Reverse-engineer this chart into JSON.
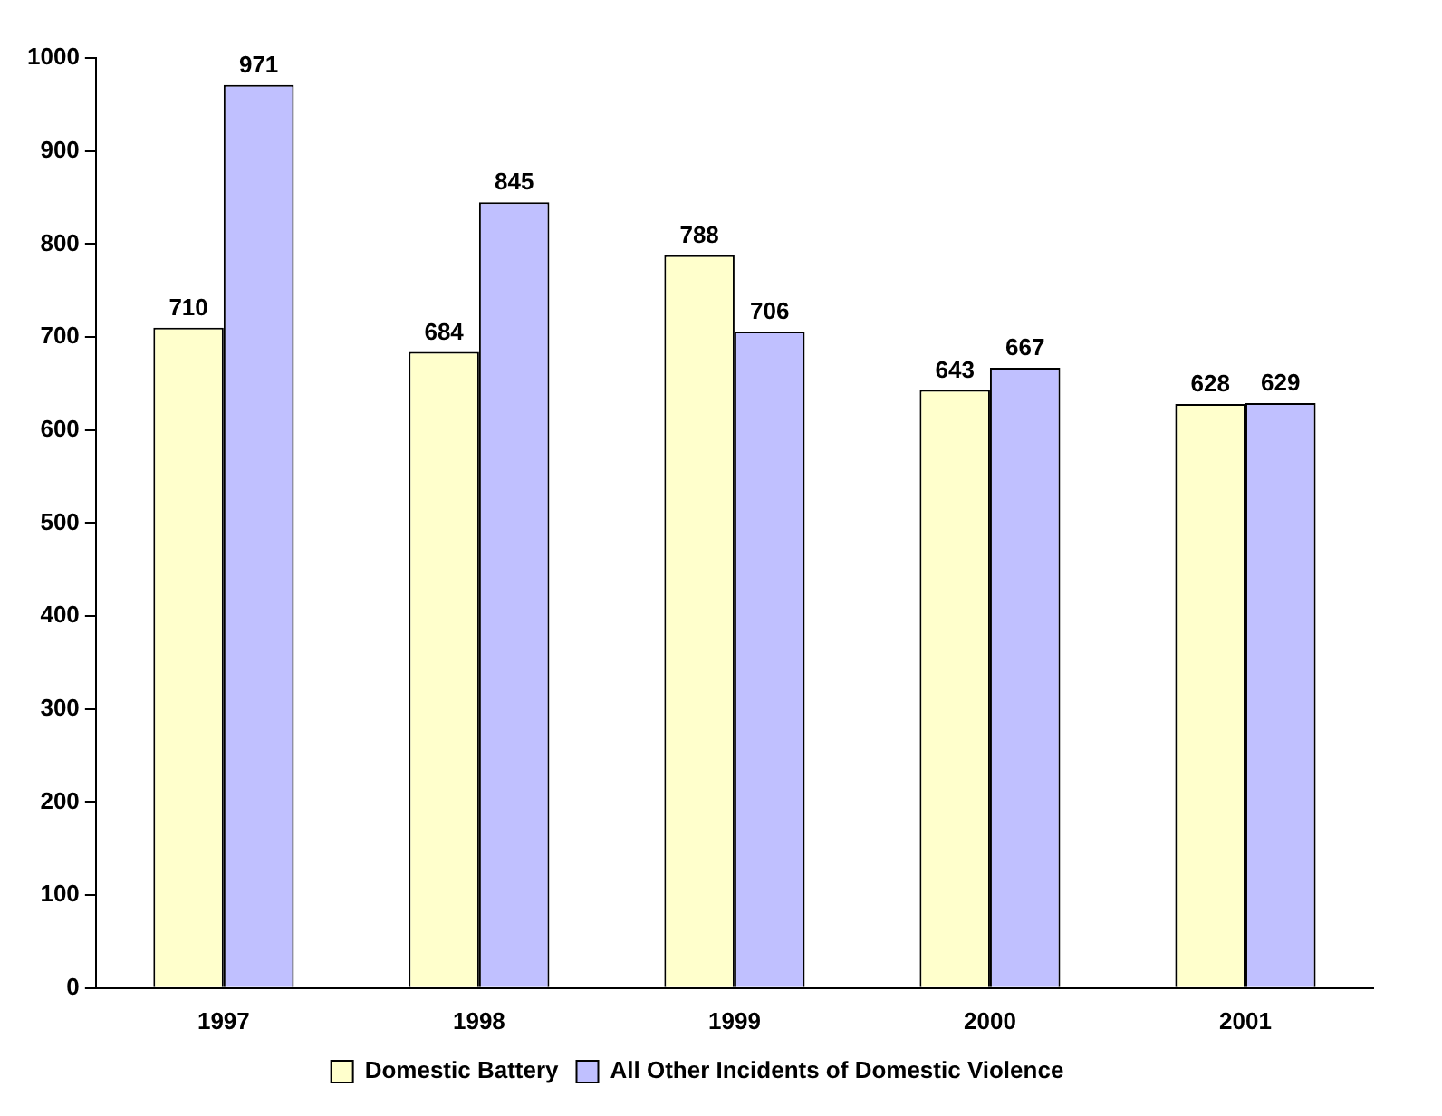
{
  "chart_data": {
    "type": "bar",
    "categories": [
      "1997",
      "1998",
      "1999",
      "2000",
      "2001"
    ],
    "series": [
      {
        "name": "Domestic Battery",
        "color": "#ffffcc",
        "values": [
          710,
          684,
          788,
          643,
          628
        ]
      },
      {
        "name": "All Other Incidents of Domestic Violence",
        "color": "#c0c0ff",
        "values": [
          971,
          845,
          706,
          667,
          629
        ]
      }
    ],
    "ylim": [
      0,
      1000
    ],
    "yticks": [
      0,
      100,
      200,
      300,
      400,
      500,
      600,
      700,
      800,
      900,
      1000
    ],
    "grid": false,
    "legend": "bottom",
    "data_labels": true
  }
}
